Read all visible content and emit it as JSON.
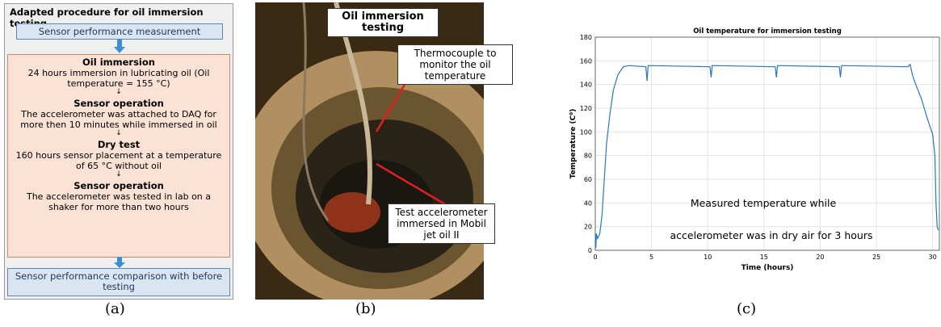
{
  "flowchart": {
    "title": "Adapted procedure for oil immersion testing",
    "start": "Sensor performance measurement",
    "steps": [
      {
        "heading": "Oil immersion",
        "text": "24 hours immersion in lubricating oil (Oil temperature = 155 °C)"
      },
      {
        "heading": "Sensor operation",
        "text": "The accelerometer was attached to DAQ for more then 10 minutes while immersed in oil"
      },
      {
        "heading": "Dry test",
        "text": "160 hours sensor placement at a temperature of 65 °C without oil"
      },
      {
        "heading": "Sensor operation",
        "text": "The accelerometer was tested in lab on a shaker for more than two hours"
      }
    ],
    "end": "Sensor performance comparison with before testing"
  },
  "photo": {
    "title": "Oil immersion testing",
    "labels": [
      "Thermocouple to monitor the oil temperature",
      "Test accelerometer immersed in Mobil jet oil II"
    ]
  },
  "chart_data": {
    "type": "line",
    "title": "Oil temperature for immersion testing",
    "x_label": "Time (hours)",
    "y_label": "Temperature (C⁰)",
    "annotations": [
      "Measured temperature while",
      "accelerometer was in dry air for 3 hours"
    ],
    "x": [
      0,
      0.05,
      0.1,
      0.2,
      0.4,
      0.6,
      0.8,
      1.0,
      1.3,
      1.6,
      2.0,
      2.5,
      3,
      4.5,
      4.6,
      4.7,
      10.2,
      10.3,
      10.4,
      16,
      16.1,
      16.2,
      21.7,
      21.8,
      21.9,
      27.8,
      28,
      28.2,
      28.5,
      29,
      29.5,
      30,
      30.2,
      30.3,
      30.4,
      30.5
    ],
    "values": [
      15,
      2,
      14,
      10,
      14,
      30,
      60,
      90,
      115,
      135,
      148,
      155,
      156,
      155,
      143,
      156,
      155,
      146,
      156,
      155,
      146,
      156,
      155,
      146,
      156,
      155,
      157,
      148,
      140,
      128,
      112,
      98,
      80,
      40,
      20,
      17
    ],
    "color": "#2a77b8",
    "xlim": [
      0,
      30.6
    ],
    "ylim": [
      0,
      180
    ],
    "xticks": [
      0,
      5,
      10,
      15,
      20,
      25,
      30
    ],
    "yticks": [
      0,
      20,
      40,
      60,
      80,
      100,
      120,
      140,
      160,
      180
    ],
    "grid": true
  },
  "captions": [
    "(a)",
    "(b)",
    "(c)"
  ]
}
